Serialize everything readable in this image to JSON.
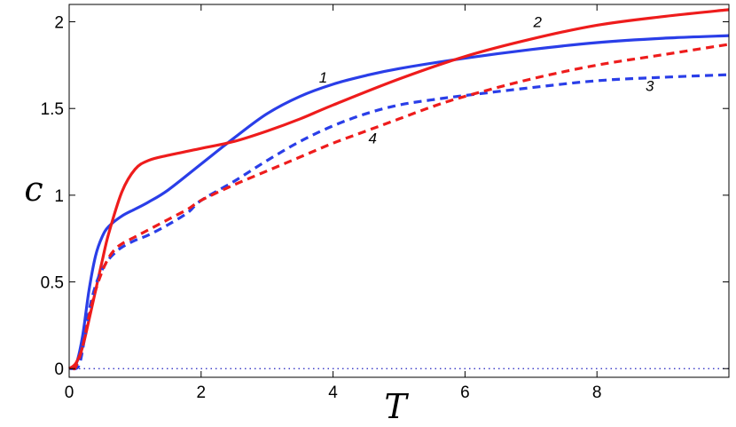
{
  "chart_data": {
    "type": "line",
    "xlabel": "T",
    "ylabel": "c",
    "xlim": [
      0,
      10
    ],
    "ylim": [
      -0.05,
      2.1
    ],
    "x_ticks": [
      "0",
      "2",
      "4",
      "6",
      "8"
    ],
    "y_ticks": [
      "0",
      "0.5",
      "1",
      "1.5",
      "2"
    ],
    "grid": false,
    "reference_line": {
      "y": 0,
      "style": "dotted",
      "color": "#2020c0"
    },
    "series": [
      {
        "label": "1",
        "color": "#2a3ee8",
        "dash": "solid",
        "label_at": [
          3.85,
          1.65
        ],
        "x": [
          0,
          0.1,
          0.2,
          0.3,
          0.4,
          0.5,
          0.6,
          0.8,
          1.0,
          1.2,
          1.5,
          2.0,
          2.5,
          3.0,
          3.5,
          4.0,
          4.5,
          5.0,
          6.0,
          7.0,
          8.0,
          9.0,
          10.0
        ],
        "y": [
          0,
          0.02,
          0.18,
          0.45,
          0.65,
          0.76,
          0.82,
          0.88,
          0.92,
          0.96,
          1.03,
          1.18,
          1.33,
          1.47,
          1.57,
          1.64,
          1.69,
          1.73,
          1.79,
          1.84,
          1.88,
          1.905,
          1.92
        ]
      },
      {
        "label": "2",
        "color": "#ee1c1c",
        "dash": "solid",
        "label_at": [
          7.1,
          1.97
        ],
        "x": [
          0,
          0.1,
          0.2,
          0.3,
          0.4,
          0.5,
          0.6,
          0.8,
          1.0,
          1.2,
          1.5,
          2.0,
          2.5,
          3.0,
          3.5,
          4.0,
          5.0,
          6.0,
          7.0,
          8.0,
          9.0,
          10.0
        ],
        "y": [
          0,
          0.03,
          0.12,
          0.28,
          0.45,
          0.62,
          0.78,
          1.02,
          1.15,
          1.2,
          1.23,
          1.27,
          1.31,
          1.37,
          1.44,
          1.52,
          1.67,
          1.8,
          1.9,
          1.98,
          2.03,
          2.07
        ]
      },
      {
        "label": "3",
        "color": "#2a3ee8",
        "dash": "dashed",
        "label_at": [
          8.8,
          1.6
        ],
        "x": [
          0.05,
          0.1,
          0.15,
          0.2,
          0.3,
          0.4,
          0.5,
          0.6,
          0.7,
          0.8,
          1.0,
          1.2,
          1.5,
          1.8,
          2.0,
          2.5,
          3.0,
          3.5,
          4.0,
          4.5,
          5.0,
          5.5,
          6.0,
          7.0,
          8.0,
          9.0,
          10.0
        ],
        "y": [
          0,
          0.0,
          0.02,
          0.1,
          0.33,
          0.48,
          0.57,
          0.63,
          0.67,
          0.7,
          0.74,
          0.77,
          0.83,
          0.9,
          0.97,
          1.08,
          1.2,
          1.31,
          1.4,
          1.47,
          1.52,
          1.55,
          1.575,
          1.62,
          1.66,
          1.68,
          1.695
        ]
      },
      {
        "label": "4",
        "color": "#ee1c1c",
        "dash": "dashed",
        "label_at": [
          4.6,
          1.3
        ],
        "x": [
          0.05,
          0.1,
          0.2,
          0.3,
          0.4,
          0.5,
          0.6,
          0.7,
          0.8,
          1.0,
          1.2,
          1.5,
          1.8,
          2.0,
          2.5,
          3.0,
          3.5,
          4.0,
          4.5,
          5.0,
          5.5,
          6.0,
          7.0,
          8.0,
          9.0,
          10.0
        ],
        "y": [
          0,
          0.01,
          0.12,
          0.3,
          0.45,
          0.56,
          0.64,
          0.69,
          0.72,
          0.76,
          0.8,
          0.86,
          0.92,
          0.97,
          1.06,
          1.14,
          1.22,
          1.3,
          1.37,
          1.44,
          1.51,
          1.57,
          1.67,
          1.75,
          1.81,
          1.87
        ]
      }
    ]
  }
}
